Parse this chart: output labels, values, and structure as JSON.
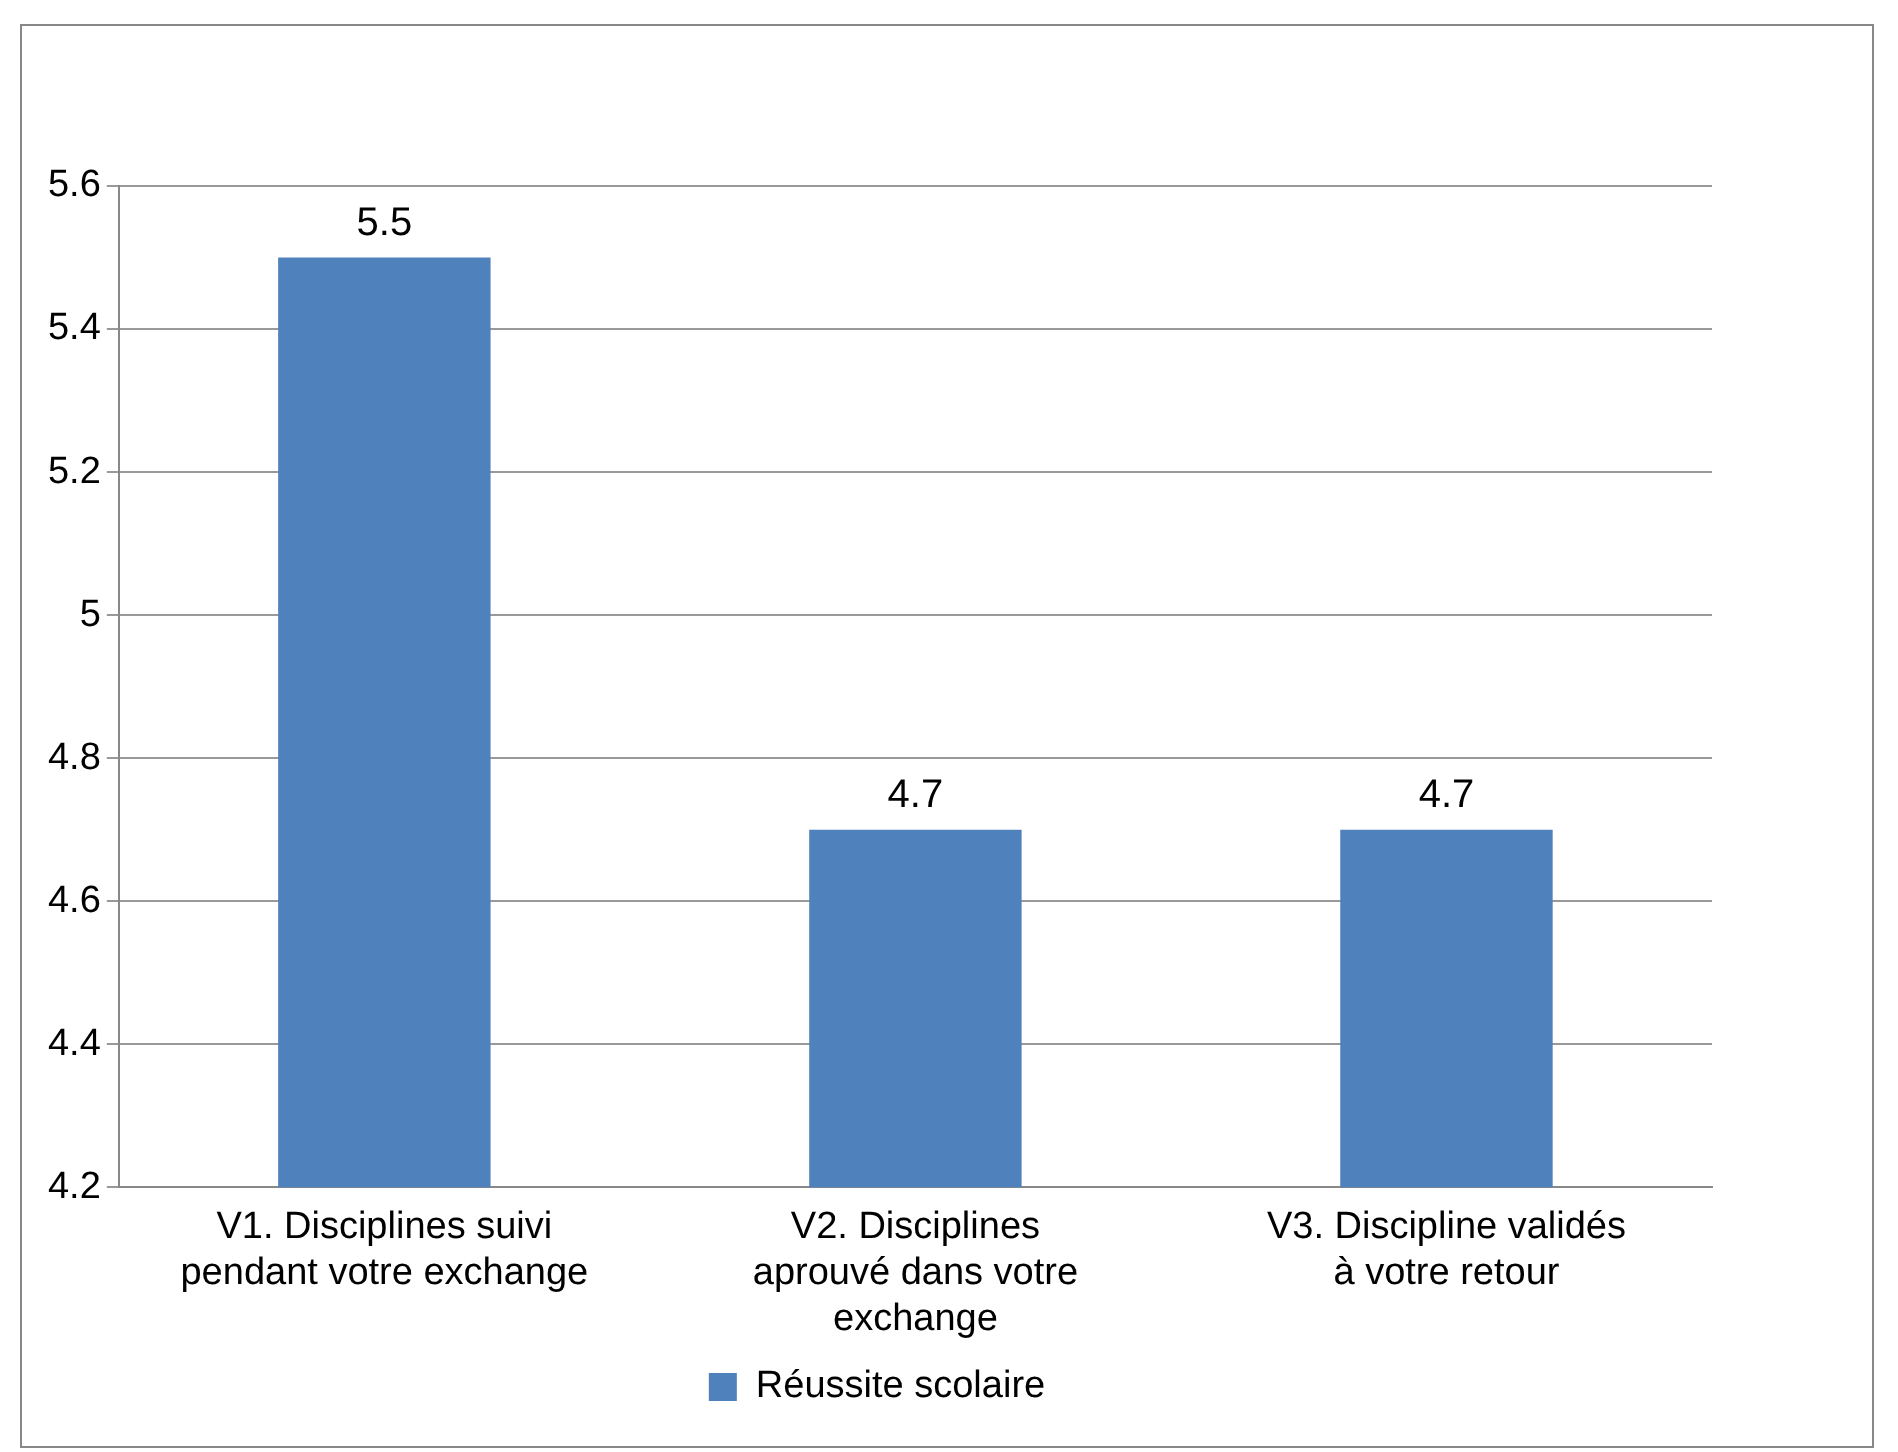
{
  "chart_data": {
    "type": "bar",
    "categories": [
      "V1. Disciplines suivi pendant votre exchange",
      "V2. Disciplines aprouvé dans votre exchange",
      "V3. Discipline validés à votre retour"
    ],
    "series": [
      {
        "name": "Réussite scolaire",
        "color": "#4f81bd",
        "values": [
          5.5,
          4.7,
          4.7
        ]
      }
    ],
    "ylim": [
      4.2,
      5.6
    ],
    "yticks": [
      4.2,
      4.4,
      4.6,
      4.8,
      5,
      5.2,
      5.4,
      5.6
    ],
    "grid": "y",
    "legend": "bottom",
    "data_labels": true
  }
}
